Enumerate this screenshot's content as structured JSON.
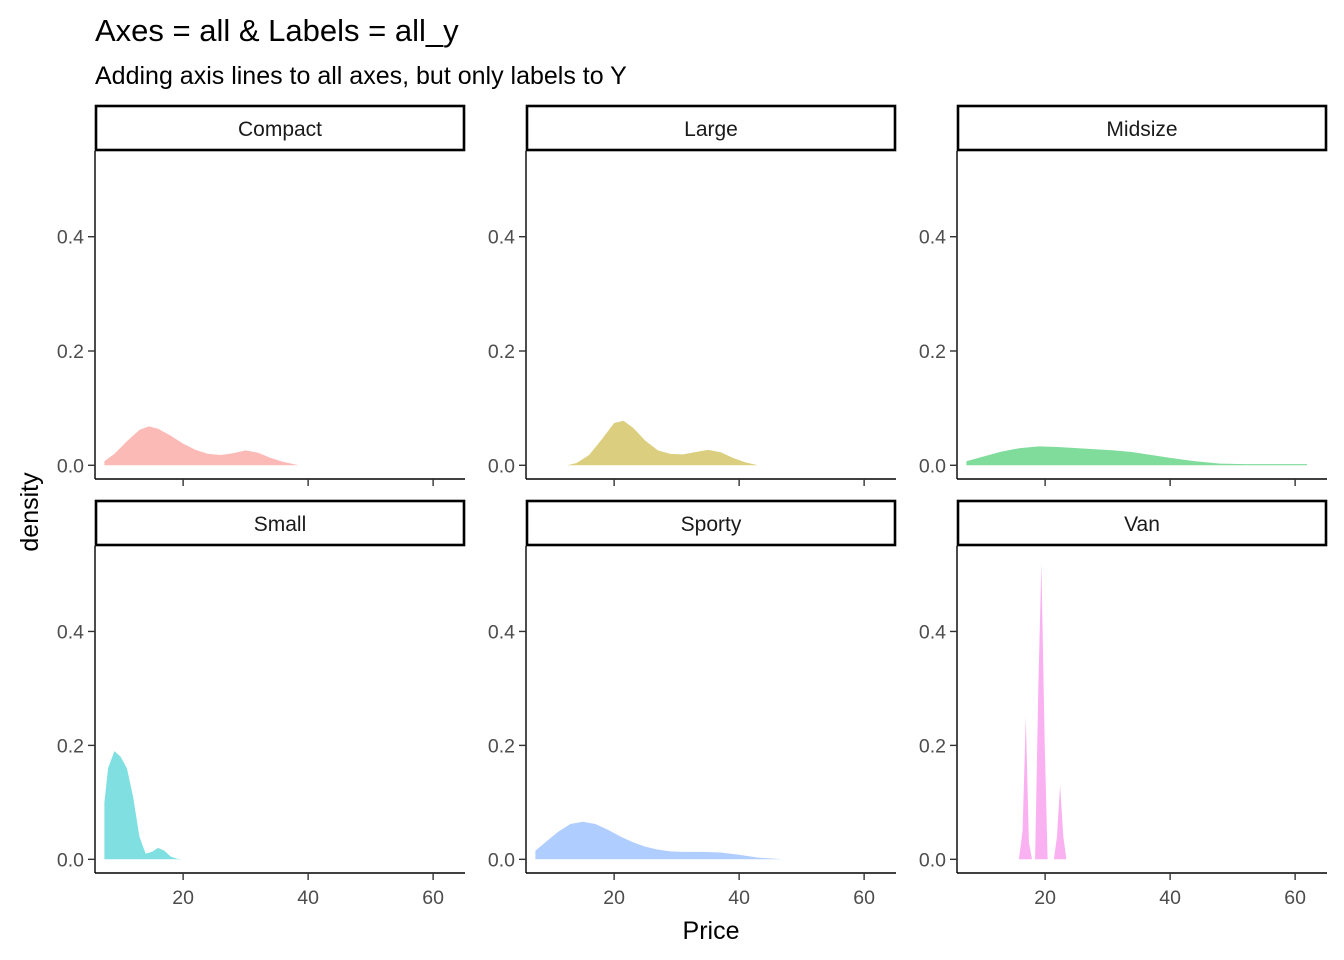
{
  "chart_data": {
    "type": "area",
    "title": "Axes = all & Labels = all_y",
    "subtitle": "Adding axis lines to all axes, but only labels to Y",
    "xlabel": "Price",
    "ylabel": "density",
    "xlim": [
      5.9,
      65.1
    ],
    "ylim": [
      -0.024,
      0.55
    ],
    "x_ticks": [
      20,
      40,
      60
    ],
    "y_ticks": [
      0.0,
      0.2,
      0.4
    ],
    "y_tick_labels": [
      "0.0",
      "0.2",
      "0.4"
    ],
    "x_tick_labels": [
      "20",
      "40",
      "60"
    ],
    "grid": false,
    "facets": [
      {
        "name": "Compact",
        "color": "#F8766D",
        "x": [
          7.4,
          9,
          11,
          13,
          14.5,
          16,
          18,
          20,
          22,
          24,
          26,
          28,
          30,
          32,
          34,
          36,
          38.5
        ],
        "y": [
          0.007,
          0.02,
          0.042,
          0.062,
          0.068,
          0.064,
          0.052,
          0.038,
          0.027,
          0.02,
          0.018,
          0.021,
          0.026,
          0.022,
          0.013,
          0.006,
          0.0
        ]
      },
      {
        "name": "Large",
        "color": "#B79F00",
        "x": [
          12.5,
          14,
          16,
          18,
          20,
          21.5,
          23,
          25,
          27,
          29,
          31,
          33,
          35,
          37,
          39,
          41,
          43
        ],
        "y": [
          0.0,
          0.004,
          0.018,
          0.045,
          0.074,
          0.078,
          0.066,
          0.043,
          0.026,
          0.02,
          0.019,
          0.023,
          0.027,
          0.023,
          0.013,
          0.005,
          0.0
        ]
      },
      {
        "name": "Midsize",
        "color": "#00BA38",
        "x": [
          7.4,
          10,
          13,
          16,
          19,
          22,
          25,
          28,
          31,
          34,
          37,
          40,
          44,
          48,
          52,
          56,
          61.9
        ],
        "y": [
          0.007,
          0.015,
          0.024,
          0.03,
          0.033,
          0.032,
          0.03,
          0.028,
          0.026,
          0.023,
          0.018,
          0.013,
          0.007,
          0.003,
          0.002,
          0.002,
          0.002
        ]
      },
      {
        "name": "Small",
        "color": "#00BFC4",
        "x": [
          7.4,
          8,
          9,
          10,
          11,
          12,
          13,
          14,
          15,
          16,
          17,
          18,
          19,
          20
        ],
        "y": [
          0.1,
          0.16,
          0.19,
          0.18,
          0.16,
          0.11,
          0.04,
          0.01,
          0.013,
          0.02,
          0.015,
          0.005,
          0.001,
          0.0
        ]
      },
      {
        "name": "Sporty",
        "color": "#619CFF",
        "x": [
          7.4,
          9,
          11,
          13,
          15,
          17,
          19,
          21,
          23,
          25,
          27,
          29,
          31,
          34,
          37,
          40,
          43,
          47
        ],
        "y": [
          0.015,
          0.03,
          0.048,
          0.062,
          0.066,
          0.062,
          0.052,
          0.04,
          0.03,
          0.022,
          0.017,
          0.014,
          0.013,
          0.013,
          0.012,
          0.008,
          0.003,
          0.0
        ]
      },
      {
        "name": "Van",
        "color": "#F564E3",
        "x": [
          15.8,
          16.4,
          16.9,
          17.4,
          17.9,
          18.4,
          18.9,
          19.4,
          19.9,
          20.4,
          20.9,
          21.4,
          21.9,
          22.4,
          22.9,
          23.4
        ],
        "y": [
          0.0,
          0.05,
          0.25,
          0.03,
          0.0,
          0.0,
          0.3,
          0.52,
          0.22,
          0.0,
          0.0,
          0.0,
          0.04,
          0.13,
          0.04,
          0.0
        ]
      }
    ]
  }
}
